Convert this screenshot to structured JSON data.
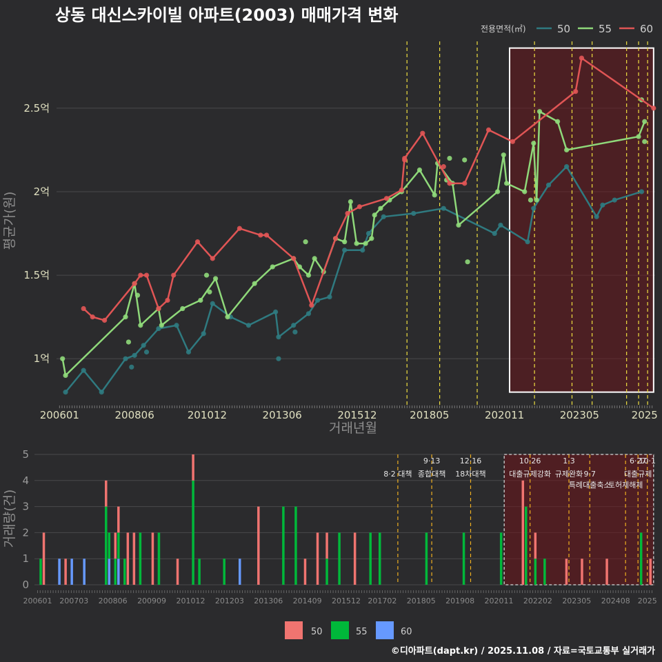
{
  "title": "상동 대신스카이빌 아파트(2003) 매매가격 변화",
  "footer": "©디아파트(dapt.kr) / 2025.11.08 / 자료=국토교통부 실거래가",
  "colors": {
    "s50": "#2f7a80",
    "s55": "#8fd97a",
    "s60": "#e05555",
    "b50": "#f07470",
    "b55": "#00b83a",
    "b60": "#6699ff",
    "policy": "#f0e040",
    "bg": "#2b2b2d"
  },
  "chart_data": [
    {
      "type": "line",
      "title": "상동 대신스카이빌 아파트(2003) 매매가격 변화",
      "xlabel": "거래년월",
      "ylabel": "평균가(원)",
      "ylim": [
        0.72,
        2.9
      ],
      "xlim": [
        2005.9,
        2025.85
      ],
      "y_ticks": [
        {
          "v": 1.0,
          "label": "1억"
        },
        {
          "v": 1.5,
          "label": "1.5억"
        },
        {
          "v": 2.0,
          "label": "2억"
        },
        {
          "v": 2.5,
          "label": "2.5억"
        }
      ],
      "x_ticks": [
        {
          "v": 2006.0,
          "label": "200601"
        },
        {
          "v": 2008.5,
          "label": "200806"
        },
        {
          "v": 2010.92,
          "label": "201012"
        },
        {
          "v": 2013.42,
          "label": "201306"
        },
        {
          "v": 2015.92,
          "label": "201512"
        },
        {
          "v": 2018.33,
          "label": "201805"
        },
        {
          "v": 2020.83,
          "label": "202011"
        },
        {
          "v": 2023.33,
          "label": "202305"
        },
        {
          "v": 2025.5,
          "label": "2025"
        }
      ],
      "legend_title": "전용면적(㎡)",
      "series": [
        {
          "name": "50",
          "color": "#2f7a80",
          "points": [
            [
              2006.2,
              0.8
            ],
            [
              2006.8,
              0.93
            ],
            [
              2007.4,
              0.8
            ],
            [
              2008.2,
              1.0
            ],
            [
              2008.5,
              1.02
            ],
            [
              2008.8,
              1.08
            ],
            [
              2009.3,
              1.18
            ],
            [
              2009.9,
              1.2
            ],
            [
              2010.3,
              1.04
            ],
            [
              2010.8,
              1.15
            ],
            [
              2011.1,
              1.33
            ],
            [
              2011.7,
              1.25
            ],
            [
              2012.3,
              1.2
            ],
            [
              2013.2,
              1.28
            ],
            [
              2013.3,
              1.13
            ],
            [
              2013.8,
              1.2
            ],
            [
              2014.3,
              1.27
            ],
            [
              2014.6,
              1.35
            ],
            [
              2015.0,
              1.37
            ],
            [
              2015.5,
              1.65
            ],
            [
              2016.1,
              1.65
            ],
            [
              2016.3,
              1.75
            ],
            [
              2016.8,
              1.85
            ],
            [
              2017.8,
              1.87
            ],
            [
              2018.8,
              1.9
            ],
            [
              2020.5,
              1.75
            ],
            [
              2020.7,
              1.8
            ],
            [
              2021.6,
              1.7
            ],
            [
              2021.8,
              1.9
            ],
            [
              2022.3,
              2.04
            ],
            [
              2022.9,
              2.15
            ],
            [
              2023.9,
              1.85
            ],
            [
              2024.1,
              1.92
            ],
            [
              2024.5,
              1.95
            ],
            [
              2025.4,
              2.0
            ]
          ],
          "extra": [
            [
              2013.3,
              1.0
            ],
            [
              2013.85,
              1.16
            ],
            [
              2008.4,
              0.95
            ],
            [
              2008.9,
              1.04
            ]
          ]
        },
        {
          "name": "55",
          "color": "#8fd97a",
          "points": [
            [
              2006.1,
              1.0
            ],
            [
              2006.2,
              0.9
            ],
            [
              2008.2,
              1.25
            ],
            [
              2008.5,
              1.45
            ],
            [
              2008.7,
              1.2
            ],
            [
              2009.3,
              1.3
            ],
            [
              2009.4,
              1.2
            ],
            [
              2010.1,
              1.3
            ],
            [
              2010.7,
              1.35
            ],
            [
              2011.2,
              1.48
            ],
            [
              2011.6,
              1.25
            ],
            [
              2012.5,
              1.45
            ],
            [
              2013.1,
              1.55
            ],
            [
              2013.8,
              1.6
            ],
            [
              2014.0,
              1.55
            ],
            [
              2014.3,
              1.5
            ],
            [
              2014.5,
              1.6
            ],
            [
              2014.8,
              1.52
            ],
            [
              2015.2,
              1.72
            ],
            [
              2015.5,
              1.7
            ],
            [
              2015.7,
              1.94
            ],
            [
              2015.9,
              1.69
            ],
            [
              2016.2,
              1.69
            ],
            [
              2016.4,
              1.72
            ],
            [
              2016.5,
              1.86
            ],
            [
              2016.7,
              1.9
            ],
            [
              2017.0,
              1.95
            ],
            [
              2017.4,
              2.0
            ],
            [
              2018.0,
              2.13
            ],
            [
              2018.5,
              1.98
            ],
            [
              2018.6,
              2.17
            ],
            [
              2019.1,
              2.05
            ],
            [
              2019.3,
              1.8
            ],
            [
              2020.6,
              2.0
            ],
            [
              2020.8,
              2.22
            ],
            [
              2020.9,
              2.05
            ],
            [
              2021.5,
              2.0
            ],
            [
              2021.8,
              2.29
            ],
            [
              2021.9,
              1.95
            ],
            [
              2022.0,
              2.48
            ],
            [
              2022.6,
              2.42
            ],
            [
              2022.9,
              2.25
            ],
            [
              2025.3,
              2.33
            ],
            [
              2025.5,
              2.42
            ]
          ],
          "extra": [
            [
              2008.3,
              1.1
            ],
            [
              2008.6,
              1.38
            ],
            [
              2010.9,
              1.5
            ],
            [
              2011.0,
              1.4
            ],
            [
              2014.2,
              1.7
            ],
            [
              2018.9,
              2.07
            ],
            [
              2019.0,
              2.2
            ],
            [
              2019.5,
              2.19
            ],
            [
              2019.6,
              1.58
            ],
            [
              2021.7,
              1.95
            ],
            [
              2025.4,
              2.55
            ],
            [
              2025.5,
              2.3
            ]
          ]
        },
        {
          "name": "60",
          "color": "#e05555",
          "points": [
            [
              2006.8,
              1.3
            ],
            [
              2007.1,
              1.25
            ],
            [
              2007.5,
              1.23
            ],
            [
              2008.5,
              1.45
            ],
            [
              2008.7,
              1.5
            ],
            [
              2008.9,
              1.5
            ],
            [
              2009.3,
              1.3
            ],
            [
              2009.6,
              1.35
            ],
            [
              2009.8,
              1.5
            ],
            [
              2010.6,
              1.7
            ],
            [
              2011.1,
              1.6
            ],
            [
              2012.0,
              1.78
            ],
            [
              2012.7,
              1.74
            ],
            [
              2012.9,
              1.74
            ],
            [
              2013.8,
              1.6
            ],
            [
              2014.4,
              1.32
            ],
            [
              2015.2,
              1.72
            ],
            [
              2015.6,
              1.87
            ],
            [
              2016.0,
              1.91
            ],
            [
              2016.9,
              1.96
            ],
            [
              2017.4,
              2.01
            ],
            [
              2017.5,
              2.2
            ],
            [
              2018.1,
              2.35
            ],
            [
              2019.0,
              2.05
            ],
            [
              2019.5,
              2.05
            ],
            [
              2020.3,
              2.37
            ],
            [
              2021.1,
              2.3
            ],
            [
              2023.2,
              2.6
            ],
            [
              2023.4,
              2.8
            ],
            [
              2025.8,
              2.5
            ]
          ],
          "extra": [
            [
              2017.5,
              2.19
            ],
            [
              2018.8,
              2.15
            ]
          ]
        }
      ],
      "policy_lines_x": [
        2017.58,
        2018.67,
        2019.92,
        2021.83,
        2023.08,
        2023.75,
        2024.9,
        2025.3,
        2025.6
      ],
      "highlight_range": [
        2021.0,
        2025.8
      ]
    },
    {
      "type": "bar",
      "ylabel": "거래량(건)",
      "ylim": [
        0,
        5
      ],
      "xlim": [
        2005.9,
        2025.85
      ],
      "y_ticks": [
        0,
        1,
        2,
        3,
        4,
        5
      ],
      "x_ticks": [
        {
          "v": 2006.0,
          "label": "200601"
        },
        {
          "v": 2007.17,
          "label": "200703"
        },
        {
          "v": 2008.42,
          "label": "200806"
        },
        {
          "v": 2009.67,
          "label": "200909"
        },
        {
          "v": 2010.92,
          "label": "201012"
        },
        {
          "v": 2012.17,
          "label": "201203"
        },
        {
          "v": 2013.42,
          "label": "201306"
        },
        {
          "v": 2014.67,
          "label": "201409"
        },
        {
          "v": 2015.92,
          "label": "201512"
        },
        {
          "v": 2017.08,
          "label": "201702"
        },
        {
          "v": 2018.33,
          "label": "201805"
        },
        {
          "v": 2019.58,
          "label": "201908"
        },
        {
          "v": 2020.83,
          "label": "202011"
        },
        {
          "v": 2022.08,
          "label": "202202"
        },
        {
          "v": 2023.33,
          "label": "202305"
        },
        {
          "v": 2024.58,
          "label": "202408"
        },
        {
          "v": 2025.6,
          "label": "2025"
        }
      ],
      "legend": [
        "50",
        "55",
        "60"
      ],
      "bars": [
        {
          "x": 2006.1,
          "s50": 0,
          "s55": 1,
          "s60": 0
        },
        {
          "x": 2006.2,
          "s50": 2,
          "s55": 0,
          "s60": 0
        },
        {
          "x": 2006.7,
          "s50": 0,
          "s55": 0,
          "s60": 1
        },
        {
          "x": 2006.9,
          "s50": 1,
          "s55": 0,
          "s60": 0
        },
        {
          "x": 2007.1,
          "s50": 0,
          "s55": 0,
          "s60": 1
        },
        {
          "x": 2007.5,
          "s50": 0,
          "s55": 0,
          "s60": 1
        },
        {
          "x": 2008.2,
          "s50": 1,
          "s55": 3,
          "s60": 0
        },
        {
          "x": 2008.3,
          "s50": 0,
          "s55": 1,
          "s60": 1
        },
        {
          "x": 2008.5,
          "s50": 1,
          "s55": 1,
          "s60": 0
        },
        {
          "x": 2008.6,
          "s50": 1,
          "s55": 1,
          "s60": 1
        },
        {
          "x": 2008.8,
          "s50": 0,
          "s55": 1,
          "s60": 0
        },
        {
          "x": 2008.9,
          "s50": 2,
          "s55": 0,
          "s60": 0
        },
        {
          "x": 2009.1,
          "s50": 2,
          "s55": 0,
          "s60": 0
        },
        {
          "x": 2009.3,
          "s50": 0,
          "s55": 2,
          "s60": 0
        },
        {
          "x": 2009.7,
          "s50": 2,
          "s55": 0,
          "s60": 0
        },
        {
          "x": 2009.9,
          "s50": 0,
          "s55": 2,
          "s60": 0
        },
        {
          "x": 2010.5,
          "s50": 1,
          "s55": 0,
          "s60": 0
        },
        {
          "x": 2011.0,
          "s50": 1,
          "s55": 4,
          "s60": 0
        },
        {
          "x": 2011.2,
          "s50": 0,
          "s55": 1,
          "s60": 0
        },
        {
          "x": 2012.0,
          "s50": 0,
          "s55": 1,
          "s60": 0
        },
        {
          "x": 2012.5,
          "s50": 0,
          "s55": 0,
          "s60": 1
        },
        {
          "x": 2013.1,
          "s50": 3,
          "s55": 0,
          "s60": 0
        },
        {
          "x": 2013.9,
          "s50": 0,
          "s55": 3,
          "s60": 0
        },
        {
          "x": 2014.3,
          "s50": 0,
          "s55": 3,
          "s60": 0
        },
        {
          "x": 2014.6,
          "s50": 1,
          "s55": 0,
          "s60": 0
        },
        {
          "x": 2015.0,
          "s50": 2,
          "s55": 0,
          "s60": 0
        },
        {
          "x": 2015.3,
          "s50": 1,
          "s55": 1,
          "s60": 0
        },
        {
          "x": 2015.7,
          "s50": 0,
          "s55": 2,
          "s60": 0
        },
        {
          "x": 2016.2,
          "s50": 2,
          "s55": 0,
          "s60": 0
        },
        {
          "x": 2016.7,
          "s50": 0,
          "s55": 2,
          "s60": 0
        },
        {
          "x": 2017.0,
          "s50": 0,
          "s55": 2,
          "s60": 0
        },
        {
          "x": 2018.5,
          "s50": 0,
          "s55": 2,
          "s60": 0
        },
        {
          "x": 2019.7,
          "s50": 0,
          "s55": 2,
          "s60": 0
        },
        {
          "x": 2020.9,
          "s50": 0,
          "s55": 2,
          "s60": 0
        },
        {
          "x": 2021.6,
          "s50": 4,
          "s55": 0,
          "s60": 0
        },
        {
          "x": 2021.7,
          "s50": 0,
          "s55": 3,
          "s60": 0
        },
        {
          "x": 2022.0,
          "s50": 1,
          "s55": 1,
          "s60": 0
        },
        {
          "x": 2022.3,
          "s50": 0,
          "s55": 1,
          "s60": 0
        },
        {
          "x": 2023.0,
          "s50": 1,
          "s55": 0,
          "s60": 0
        },
        {
          "x": 2023.5,
          "s50": 1,
          "s55": 0,
          "s60": 0
        },
        {
          "x": 2024.3,
          "s50": 1,
          "s55": 0,
          "s60": 0
        },
        {
          "x": 2025.4,
          "s50": 0,
          "s55": 2,
          "s60": 0
        },
        {
          "x": 2025.7,
          "s50": 1,
          "s55": 0,
          "s60": 0
        }
      ],
      "annotations": [
        {
          "x": 2017.58,
          "row": 1,
          "label": "8·2 대책"
        },
        {
          "x": 2018.67,
          "row": 0,
          "label": "9·13"
        },
        {
          "x": 2018.67,
          "row": 1,
          "label": "종합대책"
        },
        {
          "x": 2019.92,
          "row": 0,
          "label": "12·16"
        },
        {
          "x": 2019.92,
          "row": 1,
          "label": "18차대책"
        },
        {
          "x": 2021.83,
          "row": 0,
          "label": "10·26"
        },
        {
          "x": 2021.83,
          "row": 1,
          "label": "대출규제강화"
        },
        {
          "x": 2023.08,
          "row": 0,
          "label": "1·3"
        },
        {
          "x": 2023.08,
          "row": 1,
          "label": "규제완화"
        },
        {
          "x": 2023.75,
          "row": 1,
          "label": "9·7"
        },
        {
          "x": 2023.75,
          "row": 2,
          "label": "특례대출축소"
        },
        {
          "x": 2024.9,
          "row": 2,
          "label": "토허제해제"
        },
        {
          "x": 2025.3,
          "row": 0,
          "label": "6·27"
        },
        {
          "x": 2025.3,
          "row": 1,
          "label": "대출규제"
        },
        {
          "x": 2025.6,
          "row": 0,
          "label": "10·1"
        }
      ],
      "highlight_range": [
        2021.0,
        2025.8
      ]
    }
  ]
}
